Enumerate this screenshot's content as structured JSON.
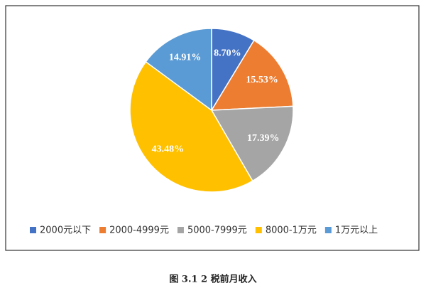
{
  "chart_data": {
    "type": "pie",
    "caption": "图 3.1 2 税前月收入",
    "categories": [
      "2000元以下",
      "2000-4999元",
      "5000-7999元",
      "8000-1万元",
      "1万元以上"
    ],
    "values": [
      8.7,
      15.53,
      17.39,
      43.48,
      14.91
    ],
    "value_labels": [
      "8.70%",
      "15.53%",
      "17.39%",
      "43.48%",
      "14.91%"
    ],
    "colors": [
      "#4472c4",
      "#ed7d31",
      "#a5a5a5",
      "#ffc000",
      "#5b9bd5"
    ],
    "legend": "bottom"
  }
}
